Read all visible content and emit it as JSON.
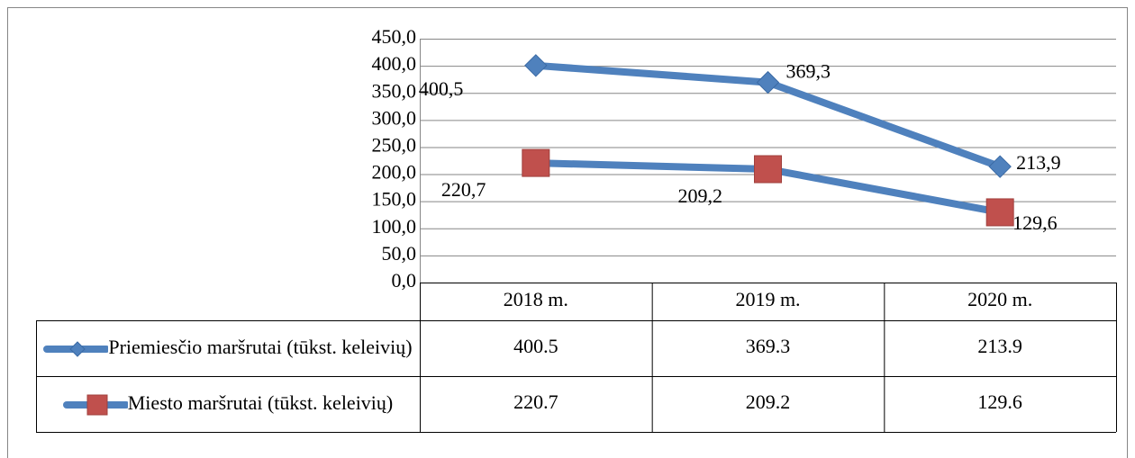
{
  "chart_data": {
    "type": "line",
    "categories": [
      "2018 m.",
      "2019 m.",
      "2020 m."
    ],
    "series": [
      {
        "name": "Priemiesčio maršrutai (tūkst. keleivių)",
        "color": "#4f81bd",
        "marker": "diamond",
        "marker_color": "#4f81bd",
        "values": [
          400.5,
          369.3,
          213.9
        ],
        "value_labels": [
          "400,5",
          "369,3",
          "213,9"
        ]
      },
      {
        "name": "Miesto maršrutai (tūkst. keleivių)",
        "color": "#4f81bd",
        "marker": "square",
        "marker_color": "#c0504d",
        "values": [
          220.7,
          209.2,
          129.6
        ],
        "value_labels": [
          "220,7",
          "209,2",
          "129,6"
        ]
      }
    ],
    "ylim": [
      0,
      450
    ],
    "yticks": [
      {
        "value": 0,
        "label": "0,0"
      },
      {
        "value": 50,
        "label": "50,0"
      },
      {
        "value": 100,
        "label": "100,0"
      },
      {
        "value": 150,
        "label": "150,0"
      },
      {
        "value": 200,
        "label": "200,0"
      },
      {
        "value": 250,
        "label": "250,0"
      },
      {
        "value": 300,
        "label": "300,0"
      },
      {
        "value": 350,
        "label": "350,0"
      },
      {
        "value": 400,
        "label": "400,0"
      },
      {
        "value": 450,
        "label": "450,0"
      }
    ],
    "grid": true,
    "data_table": true
  }
}
